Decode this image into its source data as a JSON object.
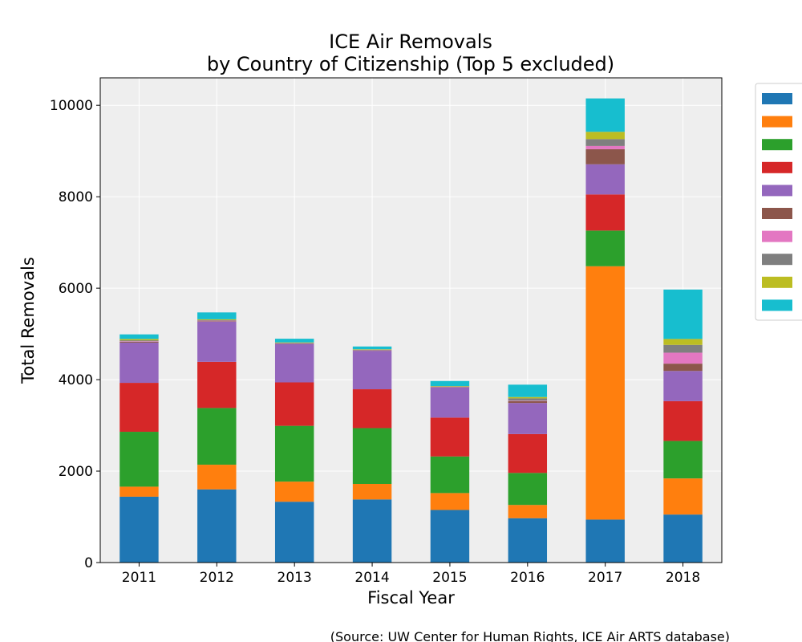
{
  "chart_data": {
    "type": "bar",
    "stacked": true,
    "title": "ICE Air Removals\nby Country of Citizenship (Top 5 excluded)",
    "xlabel": "Fiscal Year",
    "ylabel": "Total Removals",
    "source_note": "(Source: UW Center for Human Rights, ICE Air ARTS database)",
    "categories": [
      "2011",
      "2012",
      "2013",
      "2014",
      "2015",
      "2016",
      "2017",
      "2018"
    ],
    "ylim": [
      0,
      10600
    ],
    "yticks": [
      0,
      2000,
      4000,
      6000,
      8000,
      10000
    ],
    "grid": true,
    "legend_position": "right",
    "series": [
      {
        "color": "#1f77b4",
        "values": [
          1440,
          1600,
          1330,
          1380,
          1150,
          970,
          940,
          1050
        ]
      },
      {
        "color": "#ff7f0e",
        "values": [
          220,
          540,
          440,
          340,
          370,
          290,
          5540,
          790
        ]
      },
      {
        "color": "#2ca02c",
        "values": [
          1200,
          1240,
          1220,
          1220,
          800,
          700,
          780,
          820
        ]
      },
      {
        "color": "#d62728",
        "values": [
          1070,
          1010,
          950,
          850,
          850,
          850,
          790,
          870
        ]
      },
      {
        "color": "#9467bd",
        "values": [
          880,
          880,
          840,
          840,
          660,
          680,
          660,
          660
        ]
      },
      {
        "color": "#8c564b",
        "values": [
          20,
          10,
          10,
          10,
          10,
          40,
          330,
          160
        ]
      },
      {
        "color": "#e377c2",
        "values": [
          10,
          10,
          5,
          5,
          5,
          10,
          70,
          240
        ]
      },
      {
        "color": "#7f7f7f",
        "values": [
          20,
          10,
          10,
          10,
          5,
          50,
          150,
          170
        ]
      },
      {
        "color": "#bcbd22",
        "values": [
          30,
          20,
          10,
          10,
          10,
          30,
          160,
          130
        ]
      },
      {
        "color": "#17becf",
        "values": [
          100,
          150,
          80,
          60,
          110,
          270,
          730,
          1080
        ]
      }
    ]
  }
}
